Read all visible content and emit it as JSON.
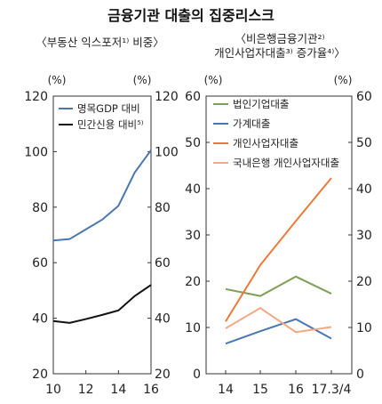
{
  "title": "금융기관 대출의 집중리스크",
  "chart_data": [
    {
      "type": "line",
      "title": "〈부동산 익스포저¹⁾ 비중〉",
      "unit_left": "(%)",
      "unit_right": "(%)",
      "ylim": [
        20,
        120
      ],
      "yticks": [
        20,
        40,
        60,
        80,
        100,
        120
      ],
      "xlim": [
        10,
        16
      ],
      "xticks": [
        "10",
        "12",
        "14",
        "16"
      ],
      "grid": false,
      "legend_position": "top-left",
      "series": [
        {
          "name": "명목GDP 대비",
          "color": "#4a77b0",
          "x": [
            10,
            11,
            12,
            13,
            14,
            15,
            16
          ],
          "values": [
            68,
            68.5,
            72,
            75.5,
            80.5,
            92.5,
            100.5
          ]
        },
        {
          "name": "민간신용 대비⁵⁾",
          "color": "#111111",
          "x": [
            10,
            11,
            12,
            13,
            14,
            15,
            16
          ],
          "values": [
            39,
            38.3,
            39.7,
            41.2,
            42.8,
            48,
            52
          ]
        }
      ]
    },
    {
      "type": "line",
      "title_line1": "〈비은행금융기관²⁾",
      "title_line2": "개인사업자대출³⁾ 증가율⁴⁾〉",
      "unit_left": "(%)",
      "unit_right": "(%)",
      "ylim": [
        0,
        60
      ],
      "yticks": [
        0,
        10,
        20,
        30,
        40,
        50,
        60
      ],
      "categories": [
        "14",
        "15",
        "16",
        "17.3/4"
      ],
      "grid": false,
      "legend_position": "top-left",
      "series": [
        {
          "name": "법인기업대출",
          "color": "#7f9f56",
          "values": [
            18.3,
            16.8,
            21,
            17.3
          ]
        },
        {
          "name": "가계대출",
          "color": "#4a77b0",
          "values": [
            6.5,
            9.2,
            11.8,
            7.6
          ]
        },
        {
          "name": "개인사업자대출",
          "color": "#ea7a3a",
          "values": [
            11.3,
            23.5,
            33,
            42.3
          ]
        },
        {
          "name": "국내은행 개인사업자대출",
          "color": "#f3a882",
          "values": [
            9.8,
            14.2,
            9,
            10.1
          ]
        }
      ]
    }
  ]
}
